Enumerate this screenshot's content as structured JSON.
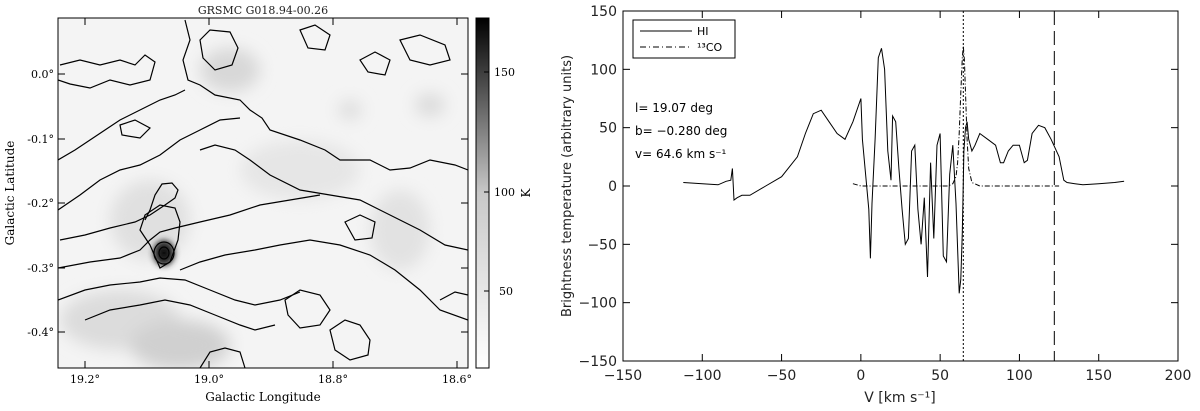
{
  "left_panel": {
    "title": "GRSMC G018.94-00.26",
    "xlabel": "Galactic Longitude",
    "ylabel": "Galactic Latitude",
    "colorbar_label": "K",
    "x_ticks": [
      "19.2°",
      "19.0°",
      "18.8°",
      "18.6°"
    ],
    "y_ticks": [
      "0.0°",
      "-0.1°",
      "-0.2°",
      "-0.3°",
      "-0.4°"
    ],
    "colorbar_ticks": [
      "150",
      "100",
      "50"
    ]
  },
  "right_panel": {
    "ylabel": "Brightness temperature (arbitrary units)",
    "xlabel": "V [km s⁻¹]",
    "legend": [
      {
        "label": "HI",
        "style": "solid"
      },
      {
        "label": "¹³CO",
        "style": "dash-dot"
      }
    ],
    "annotations": [
      "l= 19.07 deg",
      "b= −0.280 deg",
      "v= 64.6 km s⁻¹"
    ]
  },
  "chart_data": [
    {
      "type": "heatmap",
      "title": "GRSMC G018.94-00.26",
      "xlabel": "Galactic Longitude",
      "ylabel": "Galactic Latitude",
      "xlim": [
        19.24,
        18.58
      ],
      "ylim": [
        -0.46,
        0.08
      ],
      "x_ticks": [
        19.2,
        19.0,
        18.8,
        18.6
      ],
      "y_ticks": [
        0.0,
        -0.1,
        -0.2,
        -0.3,
        -0.4
      ],
      "colorbar": {
        "label": "K",
        "ticks": [
          150,
          100,
          50
        ],
        "range": [
          0,
          175
        ]
      },
      "peak": {
        "l": 19.07,
        "b": -0.28
      }
    },
    {
      "type": "line",
      "xlabel": "V [km s⁻¹]",
      "ylabel": "Brightness temperature (arbitrary units)",
      "xlim": [
        -150,
        200
      ],
      "ylim": [
        -150,
        150
      ],
      "x_ticks": [
        -150,
        -100,
        -50,
        0,
        50,
        100,
        150,
        200
      ],
      "y_ticks": [
        -150,
        -100,
        -50,
        0,
        50,
        100,
        150
      ],
      "legend_position": "top-left",
      "series": [
        {
          "name": "HI",
          "style": "solid",
          "x": [
            -112,
            -100,
            -90,
            -85,
            -82,
            -81,
            -80,
            -78,
            -75,
            -70,
            -60,
            -50,
            -40,
            -35,
            -30,
            -25,
            -20,
            -15,
            -10,
            -5,
            0,
            1,
            3,
            5,
            6,
            7,
            9,
            11,
            13,
            15,
            17,
            19,
            20,
            22,
            24,
            26,
            28,
            30,
            32,
            34,
            36,
            38,
            40,
            42,
            44,
            46,
            48,
            50,
            52,
            54,
            56,
            58,
            60,
            62,
            63,
            64,
            65,
            66,
            67,
            68,
            70,
            72,
            75,
            80,
            85,
            88,
            90,
            93,
            96,
            100,
            103,
            105,
            108,
            112,
            116,
            120,
            125,
            128,
            130,
            135,
            140,
            150,
            160,
            166
          ],
          "y": [
            3,
            2,
            1,
            4,
            5,
            15,
            -12,
            -10,
            -8,
            -8,
            0,
            8,
            25,
            45,
            62,
            65,
            55,
            45,
            40,
            55,
            75,
            40,
            10,
            -20,
            -62,
            -15,
            40,
            110,
            118,
            100,
            30,
            5,
            60,
            55,
            15,
            -20,
            -50,
            -45,
            30,
            35,
            -20,
            -50,
            -10,
            -78,
            20,
            -45,
            35,
            45,
            -60,
            -65,
            10,
            35,
            -15,
            -92,
            -80,
            -40,
            30,
            50,
            55,
            40,
            30,
            35,
            45,
            40,
            35,
            20,
            20,
            30,
            35,
            35,
            20,
            22,
            45,
            52,
            50,
            40,
            25,
            5,
            3,
            2,
            1,
            2,
            3,
            4
          ]
        },
        {
          "name": "¹³CO",
          "style": "dash-dot",
          "x": [
            -5,
            0,
            10,
            20,
            30,
            40,
            50,
            55,
            58,
            60,
            61,
            62,
            63,
            64,
            64.6,
            65.3,
            66,
            67,
            68,
            70,
            75,
            80,
            90,
            100,
            110,
            120,
            125
          ],
          "y": [
            2,
            0,
            0,
            0,
            0,
            0,
            0,
            0,
            2,
            8,
            20,
            45,
            80,
            110,
            120,
            108,
            80,
            40,
            15,
            3,
            0,
            0,
            0,
            0,
            0,
            0,
            0
          ]
        }
      ],
      "vertical_lines": [
        {
          "x": 64.6,
          "style": "dotted"
        },
        {
          "x": 122,
          "style": "long-dash"
        }
      ],
      "annotations": [
        "l= 19.07 deg",
        "b= −0.280 deg",
        "v= 64.6 km s⁻¹"
      ]
    }
  ]
}
